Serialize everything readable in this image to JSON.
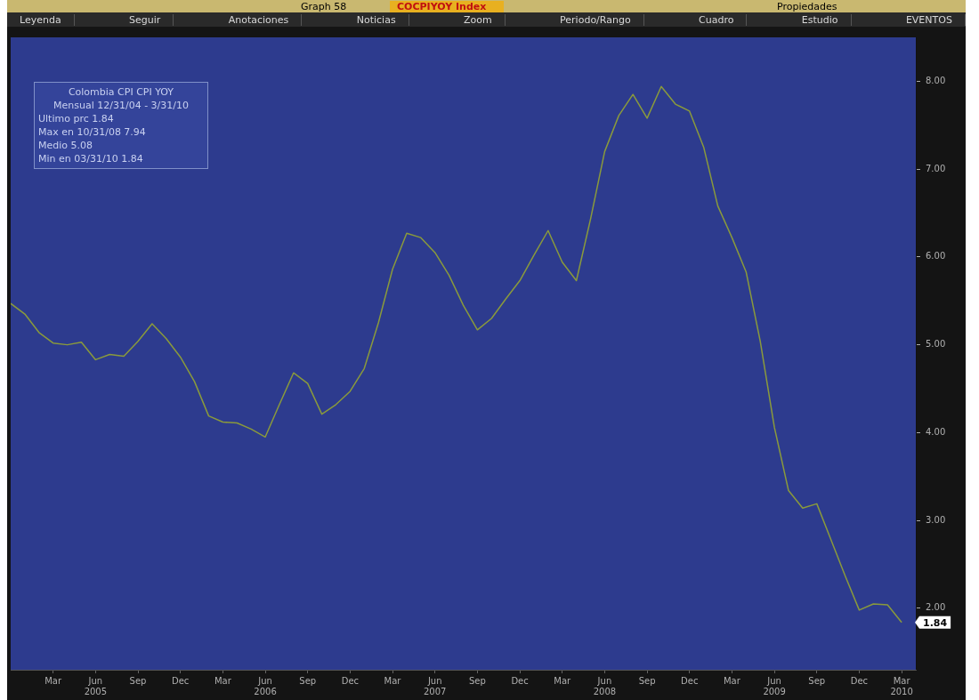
{
  "chart_data": {
    "type": "line",
    "title": "Graph 58",
    "subtitle": "COCPIYOY Index",
    "annotations": [
      "Leyenda",
      "Seguir",
      "Anotaciones",
      "Noticias",
      "Zoom",
      "Periodo/Rango",
      "Cuadro",
      "Estudio",
      "EVENTOS",
      "Propiedades",
      "Colombia CPI  CPI YOY",
      "Mensual 12/31/04 - 3/31/10",
      "Ultimo prc 1.84",
      "Max en 10/31/08 7.94",
      "Medio 5.08",
      "Min en 03/31/10 1.84",
      {
        "text": "1.84",
        "x": "2010-03",
        "y": 1.84
      }
    ],
    "x": [
      "2004-12",
      "2005-01",
      "2005-02",
      "2005-03",
      "2005-04",
      "2005-05",
      "2005-06",
      "2005-07",
      "2005-08",
      "2005-09",
      "2005-10",
      "2005-11",
      "2005-12",
      "2006-01",
      "2006-02",
      "2006-03",
      "2006-04",
      "2006-05",
      "2006-06",
      "2006-07",
      "2006-08",
      "2006-09",
      "2006-10",
      "2006-11",
      "2006-12",
      "2007-01",
      "2007-02",
      "2007-03",
      "2007-04",
      "2007-05",
      "2007-06",
      "2007-07",
      "2007-08",
      "2007-09",
      "2007-10",
      "2007-11",
      "2007-12",
      "2008-01",
      "2008-02",
      "2008-03",
      "2008-04",
      "2008-05",
      "2008-06",
      "2008-07",
      "2008-08",
      "2008-09",
      "2008-10",
      "2008-11",
      "2008-12",
      "2009-01",
      "2009-02",
      "2009-03",
      "2009-04",
      "2009-05",
      "2009-06",
      "2009-07",
      "2009-08",
      "2009-09",
      "2009-10",
      "2009-11",
      "2009-12",
      "2010-01",
      "2010-02",
      "2010-03"
    ],
    "series": [
      {
        "color": "#8a9a3c",
        "values": [
          5.47,
          5.35,
          5.14,
          5.02,
          5.0,
          5.03,
          4.83,
          4.89,
          4.87,
          5.04,
          5.24,
          5.07,
          4.86,
          4.58,
          4.19,
          4.12,
          4.11,
          4.04,
          3.95,
          4.32,
          4.68,
          4.56,
          4.21,
          4.32,
          4.47,
          4.73,
          5.25,
          5.86,
          6.27,
          6.22,
          6.05,
          5.79,
          5.45,
          5.17,
          5.3,
          5.52,
          5.73,
          6.02,
          6.3,
          5.94,
          5.73,
          6.43,
          7.2,
          7.61,
          7.85,
          7.58,
          7.94,
          7.74,
          7.66,
          7.25,
          6.58,
          6.22,
          5.83,
          5.04,
          4.06,
          3.34,
          3.14,
          3.19,
          2.78,
          2.37,
          1.98,
          2.05,
          2.04,
          1.84
        ]
      }
    ],
    "xlim": [
      "2004-12",
      "2010-04"
    ],
    "xticks": [
      {
        "value": "2005-03",
        "label": "Mar"
      },
      {
        "value": "2005-06",
        "label": "Jun\n2005"
      },
      {
        "value": "2005-09",
        "label": "Sep"
      },
      {
        "value": "2005-12",
        "label": "Dec"
      },
      {
        "value": "2006-03",
        "label": "Mar"
      },
      {
        "value": "2006-06",
        "label": "Jun\n2006"
      },
      {
        "value": "2006-09",
        "label": "Sep"
      },
      {
        "value": "2006-12",
        "label": "Dec"
      },
      {
        "value": "2007-03",
        "label": "Mar"
      },
      {
        "value": "2007-06",
        "label": "Jun\n2007"
      },
      {
        "value": "2007-09",
        "label": "Sep"
      },
      {
        "value": "2007-12",
        "label": "Dec"
      },
      {
        "value": "2008-03",
        "label": "Mar"
      },
      {
        "value": "2008-06",
        "label": "Jun\n2008"
      },
      {
        "value": "2008-09",
        "label": "Sep"
      },
      {
        "value": "2008-12",
        "label": "Dec"
      },
      {
        "value": "2009-03",
        "label": "Mar"
      },
      {
        "value": "2009-06",
        "label": "Jun\n2009"
      },
      {
        "value": "2009-09",
        "label": "Sep"
      },
      {
        "value": "2009-12",
        "label": "Dec"
      },
      {
        "value": "2010-03",
        "label": "Mar\n2010"
      }
    ],
    "ylim": [
      1.3,
      8.5
    ],
    "yticks": [
      {
        "value": 2,
        "label": "2.00"
      },
      {
        "value": 3,
        "label": "3.00"
      },
      {
        "value": 4,
        "label": "4.00"
      },
      {
        "value": 5,
        "label": "5.00"
      },
      {
        "value": 6,
        "label": "6.00"
      },
      {
        "value": 7,
        "label": "7.00"
      },
      {
        "value": 8,
        "label": "8.00"
      }
    ],
    "grid": false,
    "marker": "none",
    "line_style": "solid"
  }
}
